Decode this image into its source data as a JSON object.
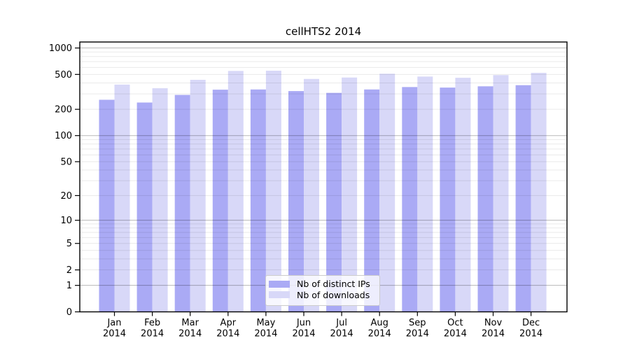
{
  "page": {
    "background": "#ffffff"
  },
  "chart_data": {
    "type": "bar",
    "title": "cellHTS2 2014",
    "categories": [
      "Jan",
      "Feb",
      "Mar",
      "Apr",
      "May",
      "Jun",
      "Jul",
      "Aug",
      "Sep",
      "Oct",
      "Nov",
      "Dec"
    ],
    "x_tick_second_line": "2014",
    "series": [
      {
        "name": "Nb of distinct IPs",
        "color": "#aaaaf5",
        "values": [
          257,
          239,
          292,
          335,
          337,
          323,
          308,
          337,
          359,
          354,
          366,
          377
        ]
      },
      {
        "name": "Nb of downloads",
        "color": "#d8d8f8",
        "values": [
          383,
          348,
          434,
          548,
          551,
          444,
          461,
          509,
          473,
          458,
          491,
          521
        ]
      }
    ],
    "y_ticks": [
      0,
      1,
      2,
      5,
      10,
      20,
      50,
      100,
      200,
      500,
      1000
    ],
    "y_scale": "log10(value+1)",
    "ylim": [
      0,
      1170
    ],
    "xlabel": "",
    "ylabel": "",
    "grid": {
      "mode": "major+minor",
      "major_ticks": [
        1,
        10,
        100,
        1000
      ],
      "major_color": "rgba(0,0,0,0.28)",
      "minor_color": "rgba(0,0,0,0.085)"
    },
    "axis_color": "#000000",
    "legend_position": "bottom-center"
  }
}
